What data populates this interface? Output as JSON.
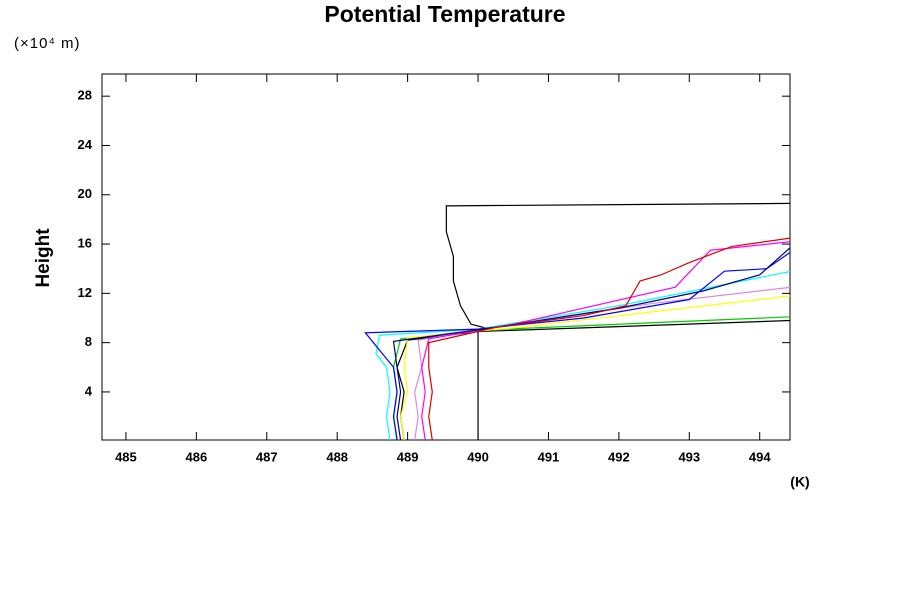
{
  "chart_data": {
    "type": "line",
    "title": "Potential Temperature",
    "y_label": "Height",
    "y_unit": "(×10⁴ m)",
    "x_unit": "(K)",
    "xlim": [
      484.66,
      494.43
    ],
    "ylim": [
      0.1,
      29.8
    ],
    "xticks": [
      485,
      486,
      487,
      488,
      489,
      490,
      491,
      492,
      493,
      494
    ],
    "yticks": [
      4,
      8,
      12,
      16,
      20,
      24,
      28
    ],
    "series": [
      {
        "color": "#000000",
        "x": [
          490,
          490
        ],
        "values": [
          0.1,
          8.9
        ]
      },
      {
        "color": "#000000",
        "x": [
          494.45,
          489.55,
          489.55,
          489.65,
          489.65,
          489.75,
          489.9,
          490.1
        ],
        "values": [
          19.3,
          19.1,
          17,
          15,
          13,
          11,
          9.5,
          9.2
        ]
      },
      {
        "color": "#000000",
        "x": [
          488.95,
          488.9,
          488.95,
          488.85,
          489.0,
          490.0,
          494.45
        ],
        "values": [
          0.1,
          2,
          4,
          6,
          8.2,
          8.9,
          9.8
        ]
      },
      {
        "color": "#00cc00",
        "x": [
          488.85,
          488.8,
          488.85,
          488.8,
          488.9,
          490.0,
          494.45
        ],
        "values": [
          0.1,
          2,
          4,
          6,
          8.3,
          9.0,
          10.1
        ]
      },
      {
        "color": "#ffff00",
        "x": [
          488.95,
          488.9,
          489.0,
          488.95,
          489.0,
          490.5,
          494.45
        ],
        "values": [
          0.1,
          2,
          4,
          6,
          8.4,
          9.2,
          11.8
        ]
      },
      {
        "color": "#00ffff",
        "x": [
          488.75,
          488.7,
          488.75,
          488.7,
          488.55,
          488.6,
          490.0,
          492.0,
          494.45
        ],
        "values": [
          0.1,
          2,
          4,
          6,
          7.1,
          8.6,
          9.1,
          11.0,
          13.8
        ]
      },
      {
        "color": "#dd88dd",
        "x": [
          489.1,
          489.15,
          489.1,
          489.2,
          489.15,
          490.2,
          492.5,
          494.45
        ],
        "values": [
          0.1,
          2,
          4,
          6,
          8.2,
          9.2,
          11.2,
          12.5
        ]
      },
      {
        "color": "#ff00ff",
        "x": [
          489.25,
          489.2,
          489.25,
          489.2,
          489.3,
          490.5,
          492.8,
          493.3,
          494.45
        ],
        "values": [
          0.1,
          2,
          4,
          6,
          8.3,
          9.5,
          12.5,
          15.5,
          16.2
        ]
      },
      {
        "color": "#0000ff",
        "x": [
          488.85,
          488.8,
          488.85,
          488.8,
          488.4,
          490.0,
          491.5,
          493.0,
          493.5,
          494.1,
          494.45
        ],
        "values": [
          0.1,
          2,
          4,
          6,
          8.8,
          9.1,
          10.0,
          11.5,
          13.8,
          14.0,
          15.4
        ]
      },
      {
        "color": "#000080",
        "x": [
          488.9,
          488.85,
          488.9,
          488.85,
          488.8,
          490.2,
          492.0,
          493.2,
          494.0,
          494.45
        ],
        "values": [
          0.1,
          2,
          4,
          6,
          8.1,
          9.2,
          10.8,
          12.2,
          13.5,
          15.8
        ]
      },
      {
        "color": "#dd0000",
        "x": [
          489.35,
          489.3,
          489.35,
          489.3,
          489.3,
          490.3,
          491.5,
          492.1,
          492.2,
          492.3,
          492.6,
          493.0,
          493.6,
          494.45
        ],
        "values": [
          0.1,
          2,
          4,
          6,
          8,
          9.3,
          10.2,
          11,
          12,
          13,
          13.5,
          14.5,
          15.8,
          16.5
        ]
      }
    ]
  }
}
